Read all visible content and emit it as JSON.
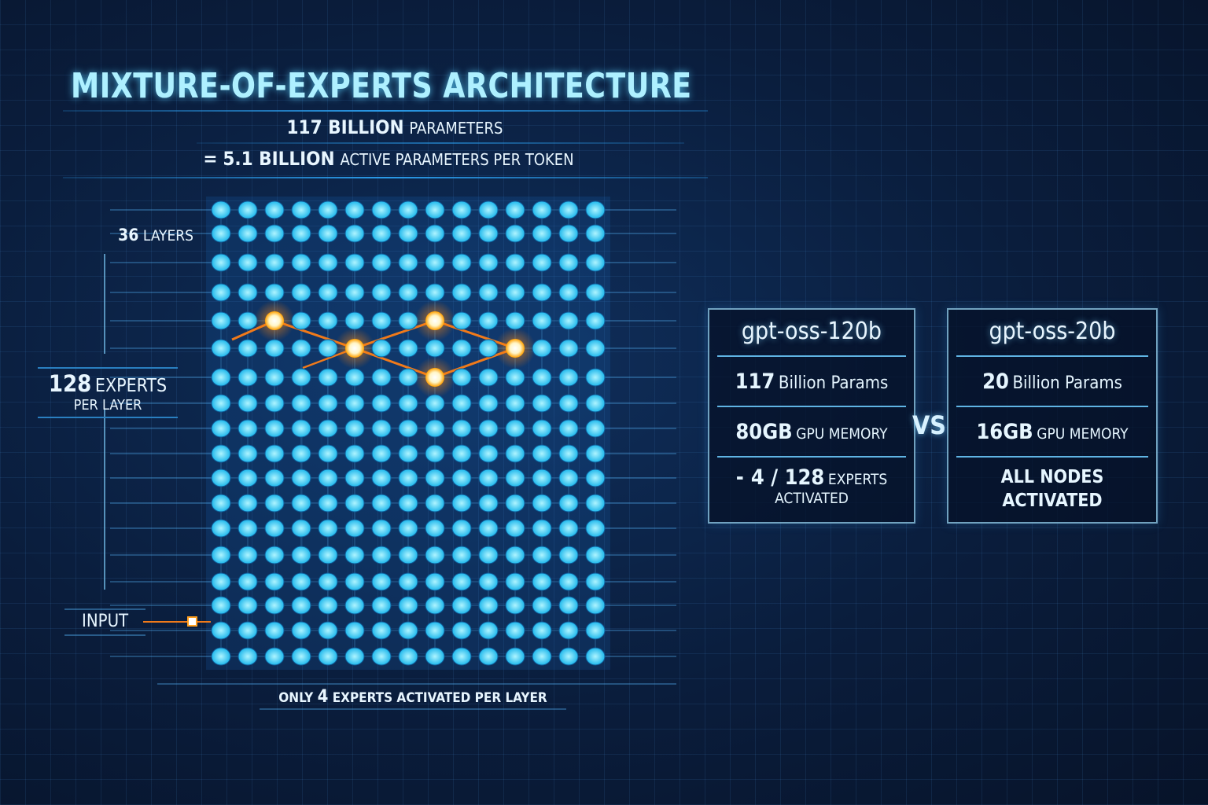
{
  "title": "MIXTURE-OF-EXPERTS ARCHITECTURE",
  "subtitle": {
    "line1_bold": "117 BILLION",
    "line1_rest": "PARAMETERS",
    "line2_prefix": "=",
    "line2_bold": "5.1 BILLION",
    "line2_rest": "ACTIVE PARAMETERS PER TOKEN"
  },
  "diagram": {
    "layers_num": "36",
    "layers_label": "LAYERS",
    "experts_num": "128",
    "experts_label": "EXPERTS",
    "experts_sub": "PER LAYER",
    "input_label": "INPUT",
    "footer_pre": "ONLY",
    "footer_num": "4",
    "footer_post": "EXPERTS ACTIVATED PER LAYER"
  },
  "comparison": {
    "vs": "VS",
    "models": [
      {
        "name": "gpt-oss-120b",
        "params_num": "117",
        "params_label": "Billion Params",
        "mem_num": "80GB",
        "mem_label": "GPU MEMORY",
        "act_prefix": "-",
        "act_num": "4 / 128",
        "act_label": "EXPERTS",
        "act_line2": "ACTIVATED"
      },
      {
        "name": "gpt-oss-20b",
        "params_num": "20",
        "params_label": "Billion Params",
        "mem_num": "16GB",
        "mem_label": "GPU MEMORY",
        "act_line1": "ALL NODES",
        "act_line2": "ACTIVATED"
      }
    ]
  },
  "colors": {
    "background": "#0a1d3c",
    "node": "#2cc8f2",
    "active_node": "#ffb020",
    "title": "#aef0ff"
  }
}
